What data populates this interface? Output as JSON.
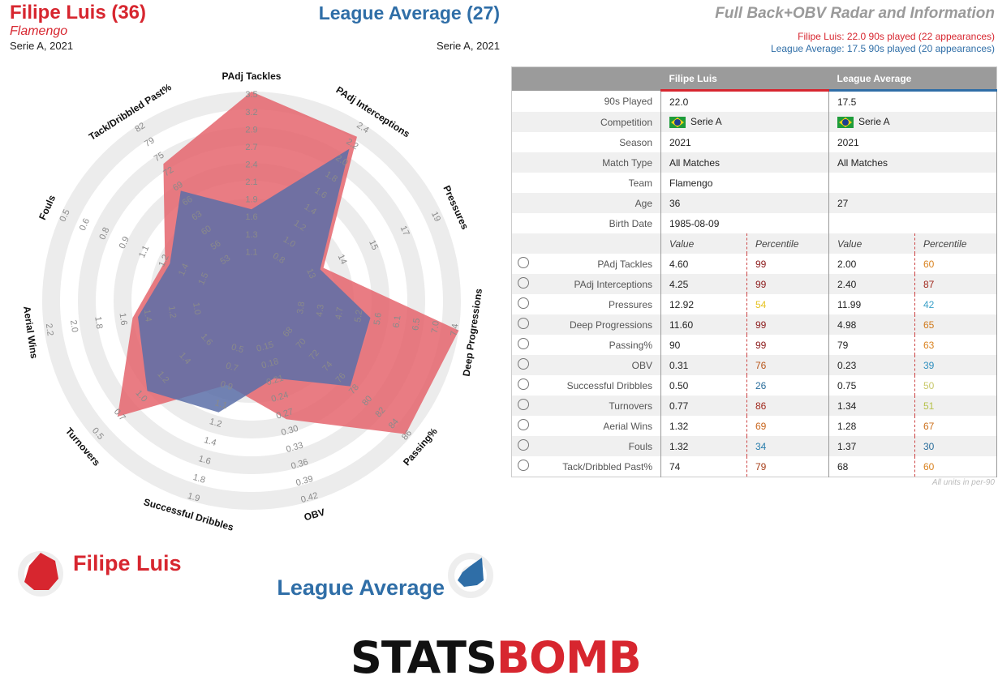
{
  "header": {
    "player_name": "Filipe Luis (36)",
    "player_team": "Flamengo",
    "player_comp": "Serie A, 2021",
    "avg_name": "League Average (27)",
    "avg_comp": "Serie A, 2021",
    "title": "Full Back+OBV Radar and Information",
    "subtitle_player": "Filipe Luis: 22.0 90s played (22 appearances)",
    "subtitle_avg": "League Average: 17.5 90s played (20 appearances)"
  },
  "legend": {
    "player": "Filipe Luis",
    "avg": "League Average"
  },
  "logo": {
    "part1": "STATS",
    "part2": "BOMB"
  },
  "colors": {
    "player": "#e5656d",
    "avg": "#5a6fa8",
    "player_text": "#d7262f",
    "avg_text": "#2f6ea7"
  },
  "table": {
    "col_player": "Filipe Luis",
    "col_avg": "League Average",
    "info_rows": [
      {
        "label": "90s Played",
        "p": "22.0",
        "a": "17.5"
      },
      {
        "label": "Competition",
        "p": "Serie A",
        "a": "Serie A",
        "flag": true
      },
      {
        "label": "Season",
        "p": "2021",
        "a": "2021"
      },
      {
        "label": "Match Type",
        "p": "All Matches",
        "a": "All Matches"
      },
      {
        "label": "Team",
        "p": "Flamengo",
        "a": ""
      },
      {
        "label": "Age",
        "p": "36",
        "a": "27"
      },
      {
        "label": "Birth Date",
        "p": "1985-08-09",
        "a": ""
      }
    ],
    "value_header": "Value",
    "percentile_header": "Percentile",
    "stat_rows": [
      {
        "label": "PAdj Tackles",
        "pv": "4.60",
        "pp": "99",
        "ppc": "#8b1a1a",
        "av": "2.00",
        "ap": "60",
        "apc": "#d9821f"
      },
      {
        "label": "PAdj Interceptions",
        "pv": "4.25",
        "pp": "99",
        "ppc": "#8b1a1a",
        "av": "2.40",
        "ap": "87",
        "apc": "#a0281c"
      },
      {
        "label": "Pressures",
        "pv": "12.92",
        "pp": "54",
        "ppc": "#e6c21f",
        "av": "11.99",
        "ap": "42",
        "apc": "#3aa0c8"
      },
      {
        "label": "Deep Progressions",
        "pv": "11.60",
        "pp": "99",
        "ppc": "#8b1a1a",
        "av": "4.98",
        "ap": "65",
        "apc": "#d07a1c"
      },
      {
        "label": "Passing%",
        "pv": "90",
        "pp": "99",
        "ppc": "#8b1a1a",
        "av": "79",
        "ap": "63",
        "apc": "#d9821f"
      },
      {
        "label": "OBV",
        "pv": "0.31",
        "pp": "76",
        "ppc": "#b8561a",
        "av": "0.23",
        "ap": "39",
        "apc": "#2f8fbf"
      },
      {
        "label": "Successful Dribbles",
        "pv": "0.50",
        "pp": "26",
        "ppc": "#2a6e9c",
        "av": "0.75",
        "ap": "50",
        "apc": "#c8c86a"
      },
      {
        "label": "Turnovers",
        "pv": "0.77",
        "pp": "86",
        "ppc": "#a0281c",
        "av": "1.34",
        "ap": "51",
        "apc": "#b5c24a"
      },
      {
        "label": "Aerial Wins",
        "pv": "1.32",
        "pp": "69",
        "ppc": "#c8651c",
        "av": "1.28",
        "ap": "67",
        "apc": "#cc701c"
      },
      {
        "label": "Fouls",
        "pv": "1.32",
        "pp": "34",
        "ppc": "#2a7eac",
        "av": "1.37",
        "ap": "30",
        "apc": "#2a6e9c"
      },
      {
        "label": "Tack/Dribbled Past%",
        "pv": "74",
        "pp": "79",
        "ppc": "#a8401a",
        "av": "68",
        "ap": "60",
        "apc": "#d9821f"
      }
    ],
    "units_note": "All units in per-90"
  },
  "chart_data": {
    "type": "radar",
    "axes": [
      {
        "label": "PAdj Tackles",
        "ticks": [
          "1.1",
          "1.3",
          "1.6",
          "1.9",
          "2.1",
          "2.4",
          "2.7",
          "2.9",
          "3.2",
          "3.5"
        ],
        "player": 1.0,
        "avg": 0.34
      },
      {
        "label": "PAdj Interceptions",
        "ticks": [
          "0.8",
          "1.0",
          "1.2",
          "1.4",
          "1.6",
          "1.8",
          "2.0",
          "2.2",
          "2.4"
        ],
        "player": 0.92,
        "avg": 0.84
      },
      {
        "label": "Pressures",
        "ticks": [
          "13",
          "14",
          "15",
          "17",
          "19"
        ],
        "player": 0.27,
        "avg": 0.25
      },
      {
        "label": "Deep Progressions",
        "ticks": [
          "3.8",
          "4.3",
          "4.7",
          "5.2",
          "5.6",
          "6.1",
          "6.5",
          "7.0",
          "7.4"
        ],
        "player": 1.0,
        "avg": 0.5
      },
      {
        "label": "Passing%",
        "ticks": [
          "68",
          "70",
          "72",
          "74",
          "76",
          "78",
          "80",
          "82",
          "84",
          "86"
        ],
        "player": 0.97,
        "avg": 0.56
      },
      {
        "label": "OBV",
        "ticks": [
          "0.15",
          "0.18",
          "0.21",
          "0.24",
          "0.27",
          "0.30",
          "0.33",
          "0.36",
          "0.39",
          "0.42"
        ],
        "player": 0.52,
        "avg": 0.28
      },
      {
        "label": "Successful Dribbles",
        "ticks": [
          "0.5",
          "0.7",
          "0.9",
          "1.1",
          "1.2",
          "1.4",
          "1.6",
          "1.8",
          "1.9"
        ],
        "player": 0.32,
        "avg": 0.48
      },
      {
        "label": "Turnovers",
        "ticks": [
          "1.6",
          "1.4",
          "1.2",
          "1.0",
          "0.7",
          "0.5"
        ],
        "player": 0.82,
        "avg": 0.6
      },
      {
        "label": "Aerial Wins",
        "ticks": [
          "1.0",
          "1.2",
          "1.4",
          "1.6",
          "1.8",
          "2.0",
          "2.2"
        ],
        "player": 0.5,
        "avg": 0.47
      },
      {
        "label": "Fouls",
        "ticks": [
          "1.5",
          "1.4",
          "1.2",
          "1.1",
          "0.9",
          "0.8",
          "0.6",
          "0.5"
        ],
        "player": 0.36,
        "avg": 0.33
      },
      {
        "label": "Tack/Dribbled Past%",
        "ticks": [
          "53",
          "56",
          "60",
          "63",
          "66",
          "69",
          "72",
          "75",
          "79",
          "82"
        ],
        "player": 0.74,
        "avg": 0.56
      }
    ]
  }
}
